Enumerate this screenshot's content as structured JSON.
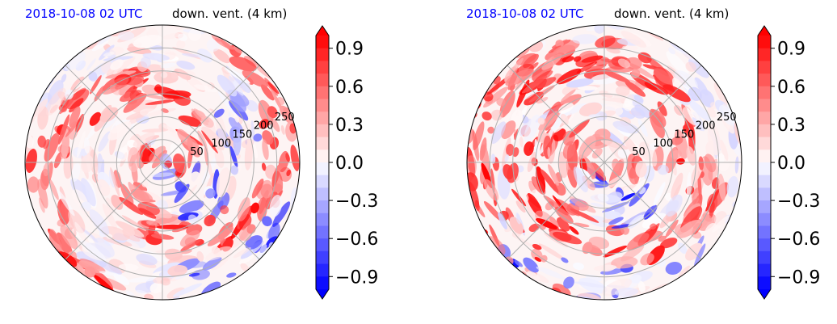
{
  "chart_data": [
    {
      "type": "heatmap",
      "projection": "polar",
      "title": "down. vent. (4 km)",
      "time_label": "2018-10-08 02 UTC",
      "radial_ticks": [
        "50",
        "100",
        "150",
        "200",
        "250"
      ],
      "radial_values": [
        50,
        100,
        150,
        200,
        250
      ],
      "colorbar": {
        "ticks": [
          0.9,
          0.6,
          0.3,
          0.0,
          -0.3,
          -0.6,
          -0.9
        ],
        "tick_labels": [
          "0.9",
          "0.6",
          "0.3",
          "0.0",
          "−0.3",
          "−0.6",
          "−0.9"
        ],
        "range": [
          -1.0,
          1.0
        ],
        "extend": "both",
        "cmap": "bwr",
        "colors": {
          "min": "#0000ff",
          "mid": "#ffffff",
          "max": "#ff0000"
        }
      }
    },
    {
      "type": "heatmap",
      "projection": "polar",
      "title": "down. vent. (4 km)",
      "time_label": "2018-10-08 02 UTC",
      "radial_ticks": [
        "50",
        "100",
        "150",
        "200",
        "250"
      ],
      "radial_values": [
        50,
        100,
        150,
        200,
        250
      ],
      "colorbar": {
        "ticks": [
          0.9,
          0.6,
          0.3,
          0.0,
          -0.3,
          -0.6,
          -0.9
        ],
        "tick_labels": [
          "0.9",
          "0.6",
          "0.3",
          "0.0",
          "−0.3",
          "−0.6",
          "−0.9"
        ],
        "range": [
          -1.0,
          1.0
        ],
        "extend": "both",
        "cmap": "bwr",
        "colors": {
          "min": "#0000ff",
          "mid": "#ffffff",
          "max": "#ff0000"
        }
      }
    }
  ]
}
